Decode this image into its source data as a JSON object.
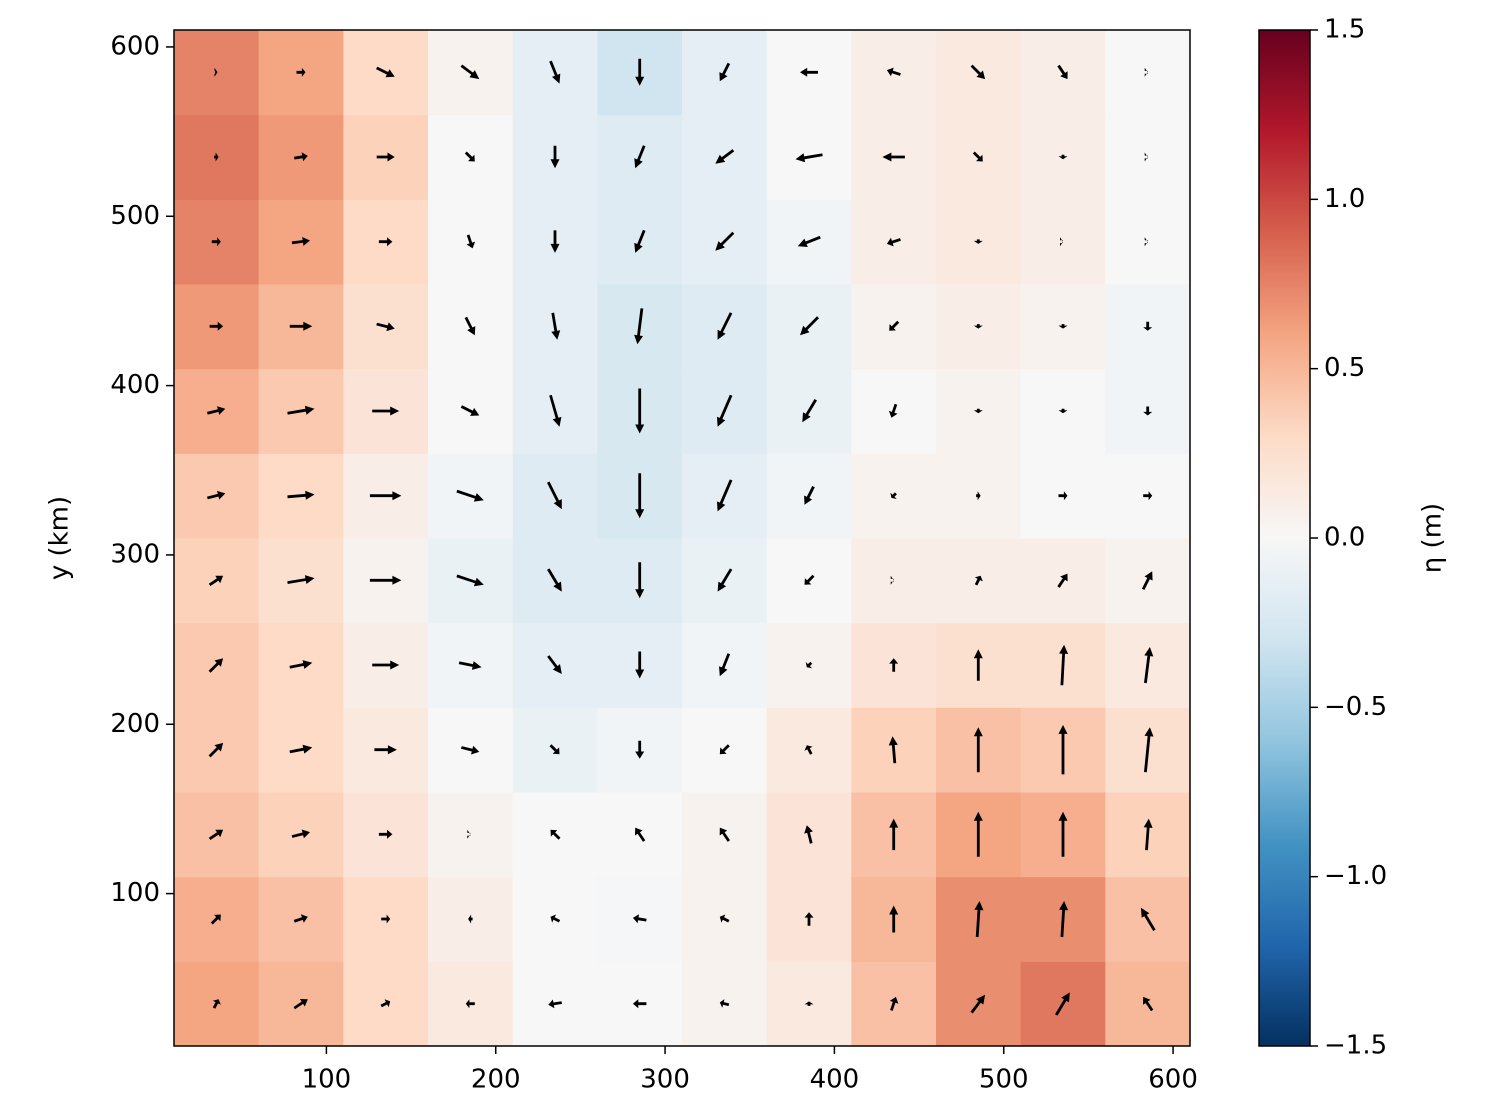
{
  "chart_data": {
    "type": "quiver-heatmap",
    "ylabel": "y (km)",
    "x": [
      35,
      85,
      135,
      185,
      235,
      285,
      335,
      385,
      435,
      485,
      535,
      585
    ],
    "y": [
      35,
      85,
      135,
      185,
      235,
      285,
      335,
      385,
      435,
      485,
      535,
      585
    ],
    "xlim": [
      10,
      610
    ],
    "ylim": [
      10,
      610
    ],
    "xticks": [
      100,
      200,
      300,
      400,
      500,
      600
    ],
    "yticks": [
      100,
      200,
      300,
      400,
      500,
      600
    ],
    "colormap": "RdBu_r",
    "values": [
      [
        0.6,
        0.5,
        0.3,
        0.15,
        0.0,
        0.0,
        0.05,
        0.15,
        0.45,
        0.7,
        0.8,
        0.5
      ],
      [
        0.55,
        0.45,
        0.3,
        0.1,
        0.0,
        -0.02,
        0.05,
        0.2,
        0.5,
        0.7,
        0.7,
        0.45
      ],
      [
        0.45,
        0.35,
        0.2,
        0.05,
        0.0,
        0.0,
        0.05,
        0.2,
        0.45,
        0.6,
        0.55,
        0.35
      ],
      [
        0.4,
        0.3,
        0.15,
        0.0,
        -0.1,
        -0.05,
        0.0,
        0.15,
        0.35,
        0.45,
        0.4,
        0.25
      ],
      [
        0.4,
        0.3,
        0.1,
        -0.05,
        -0.15,
        -0.15,
        -0.05,
        0.05,
        0.2,
        0.25,
        0.25,
        0.15
      ],
      [
        0.35,
        0.25,
        0.05,
        -0.1,
        -0.2,
        -0.2,
        -0.1,
        0.0,
        0.1,
        0.1,
        0.1,
        0.05
      ],
      [
        0.4,
        0.3,
        0.1,
        -0.05,
        -0.2,
        -0.25,
        -0.15,
        -0.05,
        0.05,
        0.05,
        0.0,
        0.0
      ],
      [
        0.55,
        0.4,
        0.2,
        0.0,
        -0.15,
        -0.25,
        -0.2,
        -0.1,
        0.0,
        0.05,
        0.0,
        -0.05
      ],
      [
        0.65,
        0.5,
        0.25,
        0.0,
        -0.15,
        -0.25,
        -0.2,
        -0.1,
        0.05,
        0.1,
        0.05,
        -0.05
      ],
      [
        0.75,
        0.6,
        0.3,
        0.0,
        -0.15,
        -0.2,
        -0.15,
        -0.05,
        0.1,
        0.15,
        0.1,
        0.0
      ],
      [
        0.8,
        0.65,
        0.35,
        0.0,
        -0.15,
        -0.2,
        -0.15,
        0.0,
        0.1,
        0.15,
        0.1,
        0.0
      ],
      [
        0.75,
        0.6,
        0.3,
        0.05,
        -0.15,
        -0.3,
        -0.15,
        0.0,
        0.1,
        0.15,
        0.1,
        0.0
      ]
    ],
    "u": [
      [
        0.1,
        0.3,
        0.2,
        -0.2,
        -0.3,
        -0.3,
        -0.2,
        0,
        0.1,
        0.3,
        0.3,
        -0.2
      ],
      [
        0.2,
        0.3,
        0.2,
        -0.1,
        -0.2,
        -0.3,
        -0.2,
        0,
        0,
        0.05,
        0.05,
        -0.3
      ],
      [
        0.3,
        0.4,
        0.3,
        0,
        -0.2,
        -0.2,
        -0.2,
        -0.1,
        0,
        0,
        0,
        0.05
      ],
      [
        0.3,
        0.5,
        0.5,
        0.4,
        0.2,
        0,
        -0.2,
        -0.1,
        -0.05,
        0,
        0,
        0.1
      ],
      [
        0.3,
        0.5,
        0.6,
        0.5,
        0.3,
        0,
        -0.2,
        -0.1,
        0,
        0,
        0.05,
        0.1
      ],
      [
        0.3,
        0.6,
        0.7,
        0.6,
        0.3,
        0,
        -0.3,
        -0.2,
        0,
        0.1,
        0.2,
        0.2
      ],
      [
        0.4,
        0.6,
        0.7,
        0.6,
        0.3,
        0,
        -0.3,
        -0.2,
        -0.1,
        0.1,
        0.2,
        0.2
      ],
      [
        0.4,
        0.6,
        0.6,
        0.4,
        0.2,
        0,
        -0.3,
        -0.3,
        -0.1,
        0,
        0,
        0
      ],
      [
        0.3,
        0.5,
        0.4,
        0.2,
        0.1,
        -0.1,
        -0.3,
        -0.4,
        -0.2,
        0,
        0,
        0
      ],
      [
        0.2,
        0.4,
        0.3,
        0.1,
        0,
        -0.2,
        -0.4,
        -0.5,
        -0.3,
        0,
        0,
        0
      ],
      [
        0.1,
        0.3,
        0.4,
        0.2,
        0,
        -0.2,
        -0.4,
        -0.6,
        -0.5,
        0.2,
        0,
        0
      ],
      [
        0.05,
        0.2,
        0.4,
        0.4,
        0.2,
        0,
        -0.2,
        -0.4,
        -0.3,
        0.3,
        0.2,
        0
      ]
    ],
    "v": [
      [
        0.2,
        0.2,
        0.1,
        0,
        -0.05,
        0,
        0.05,
        0.1,
        0.3,
        0.4,
        0.5,
        0.3
      ],
      [
        0.2,
        0.1,
        0,
        0,
        0.1,
        0.05,
        0.1,
        0.3,
        0.6,
        0.8,
        0.8,
        0.5
      ],
      [
        0.2,
        0.1,
        0,
        0,
        0.2,
        0.3,
        0.3,
        0.4,
        0.7,
        1,
        1,
        0.7
      ],
      [
        0.3,
        0.1,
        0,
        -0.1,
        -0.2,
        -0.4,
        -0.2,
        0.2,
        0.6,
        1,
        1.1,
        1
      ],
      [
        0.3,
        0.1,
        0,
        -0.1,
        -0.4,
        -0.6,
        -0.5,
        -0.1,
        0.3,
        0.7,
        0.9,
        0.8
      ],
      [
        0.2,
        0.1,
        0,
        -0.2,
        -0.5,
        -0.8,
        -0.5,
        -0.2,
        0,
        0.2,
        0.3,
        0.4
      ],
      [
        0.1,
        0.05,
        0,
        -0.2,
        -0.6,
        -1,
        -0.7,
        -0.4,
        -0.1,
        0,
        0,
        0
      ],
      [
        0.1,
        0.1,
        0,
        -0.2,
        -0.7,
        -1,
        -0.7,
        -0.5,
        -0.3,
        -0.1,
        -0.1,
        -0.2
      ],
      [
        0,
        0,
        -0.1,
        -0.4,
        -0.6,
        -0.8,
        -0.6,
        -0.4,
        -0.2,
        -0.1,
        -0.1,
        -0.2
      ],
      [
        0,
        0.05,
        0,
        -0.3,
        -0.5,
        -0.5,
        -0.4,
        -0.2,
        -0.1,
        -0.1,
        0,
        0
      ],
      [
        0,
        0.05,
        0,
        -0.2,
        -0.5,
        -0.5,
        -0.3,
        -0.1,
        0,
        -0.2,
        -0.1,
        0
      ],
      [
        0,
        0,
        -0.2,
        -0.3,
        -0.5,
        -0.6,
        -0.4,
        0,
        0.1,
        -0.3,
        -0.3,
        0
      ]
    ],
    "colorbar": {
      "label": "η (m)",
      "lim": [
        -1.5,
        1.5
      ],
      "ticks": [
        {
          "value": -1.5,
          "label": "−1.5"
        },
        {
          "value": -1,
          "label": "−1.0"
        },
        {
          "value": -0.5,
          "label": "−0.5"
        },
        {
          "value": 0,
          "label": "0.0"
        },
        0.5,
        {
          "value": 1,
          "label": "1.0"
        },
        1.5
      ]
    }
  }
}
